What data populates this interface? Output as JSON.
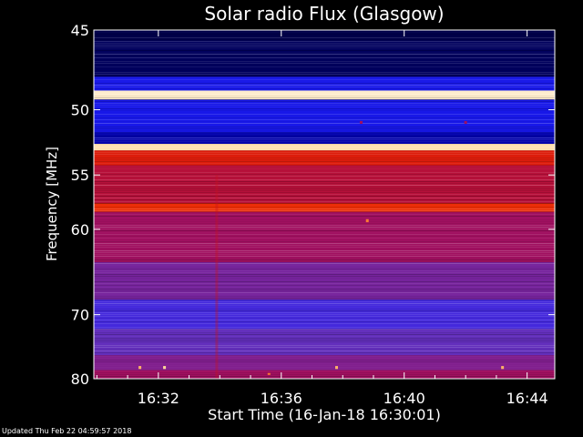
{
  "chart_data": {
    "type": "heatmap",
    "title": "Solar radio Flux (Glasgow)",
    "xlabel": "Start Time (16-Jan-18 16:30:01)",
    "ylabel": "Frequency [MHz]",
    "x_ticks": [
      "16:32",
      "16:36",
      "16:40",
      "16:44"
    ],
    "x_tick_minutes": [
      2,
      6,
      10,
      14
    ],
    "xlim_minutes": [
      -0.1,
      14.9
    ],
    "y_ticks": [
      45,
      50,
      55,
      60,
      70,
      80
    ],
    "ylim": [
      45,
      80
    ],
    "y_scale": "reciprocal",
    "colormap": [
      "#000020",
      "#0000a0",
      "#2020ff",
      "#6030c0",
      "#a01060",
      "#d01010",
      "#ff4000",
      "#ffd080",
      "#ffffff"
    ],
    "bands": [
      {
        "from": 45.0,
        "to": 45.6,
        "level": 0.04
      },
      {
        "from": 45.6,
        "to": 47.8,
        "level": 0.06
      },
      {
        "from": 47.8,
        "to": 48.7,
        "level": 0.22
      },
      {
        "from": 48.7,
        "to": 49.3,
        "level": 0.95
      },
      {
        "from": 49.3,
        "to": 51.6,
        "level": 0.22
      },
      {
        "from": 51.6,
        "to": 52.5,
        "level": 0.14
      },
      {
        "from": 52.5,
        "to": 53.0,
        "level": 0.92
      },
      {
        "from": 53.0,
        "to": 54.2,
        "level": 0.66
      },
      {
        "from": 54.2,
        "to": 57.5,
        "level": 0.56
      },
      {
        "from": 57.5,
        "to": 58.3,
        "level": 0.7
      },
      {
        "from": 58.3,
        "to": 63.5,
        "level": 0.5
      },
      {
        "from": 63.5,
        "to": 68.0,
        "level": 0.42
      },
      {
        "from": 68.0,
        "to": 72.0,
        "level": 0.32
      },
      {
        "from": 72.0,
        "to": 76.0,
        "level": 0.38
      },
      {
        "from": 76.0,
        "to": 78.5,
        "level": 0.44
      },
      {
        "from": 78.5,
        "to": 80.0,
        "level": 0.5
      }
    ],
    "features": [
      {
        "minute": 3.9,
        "from": 55.0,
        "to": 80.0,
        "level": 0.6
      },
      {
        "minute": 1.4,
        "from": 77.8,
        "to": 78.3,
        "level": 0.85
      },
      {
        "minute": 2.2,
        "from": 77.8,
        "to": 78.3,
        "level": 0.9
      },
      {
        "minute": 7.8,
        "from": 77.8,
        "to": 78.3,
        "level": 0.85
      },
      {
        "minute": 13.2,
        "from": 77.8,
        "to": 78.3,
        "level": 0.85
      },
      {
        "minute": 5.6,
        "from": 79.0,
        "to": 79.3,
        "level": 0.8
      },
      {
        "minute": 8.8,
        "from": 59.0,
        "to": 59.3,
        "level": 0.8
      },
      {
        "minute": 8.6,
        "from": 50.8,
        "to": 51.0,
        "level": 0.5
      },
      {
        "minute": 12.0,
        "from": 50.8,
        "to": 51.0,
        "level": 0.5
      }
    ]
  },
  "footer": {
    "updated_text": "Updated Thu Feb 22 04:59:57 2018"
  }
}
